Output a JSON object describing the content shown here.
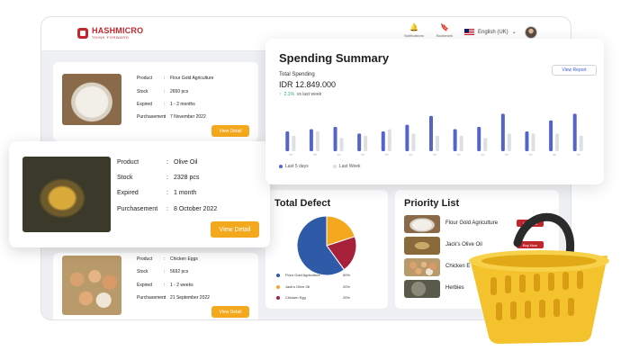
{
  "brand": {
    "name": "HASHMICRO",
    "tagline": "THINK FORWARD"
  },
  "topbar": {
    "notifications_label": "Notifications",
    "bookmark_label": "Bookmark",
    "language": "English (UK)"
  },
  "products": [
    {
      "product_label": "Product",
      "product": "Flour Gold Agriculture",
      "stock_label": "Stock",
      "stock": "2650 pcs",
      "expired_label": "Expired",
      "expired": "1 - 2 months",
      "purchase_label": "Purchasement",
      "purchase": "7 November 2022",
      "button": "View Detail",
      "image": "flour"
    },
    {
      "product_label": "Product",
      "product": "Olive Oil",
      "stock_label": "Stock",
      "stock": "2328 pcs",
      "expired_label": "Expired",
      "expired": "1 month",
      "purchase_label": "Purchasement",
      "purchase": "8 October 2022",
      "button": "View Detail",
      "image": "olive-oil"
    },
    {
      "product_label": "Product",
      "product": "Chicken Eggs",
      "stock_label": "Stock",
      "stock": "5692 pcs",
      "expired_label": "Expired",
      "expired": "1 - 2 weeks",
      "purchase_label": "Purchasement",
      "purchase": "21 September 2022",
      "button": "View Detail",
      "image": "eggs"
    }
  ],
  "spending": {
    "title": "Spending Summary",
    "total_label": "Total Spending",
    "total_value": "IDR 12.849.000",
    "delta_pct": "2.1%",
    "delta_text": "vs last week",
    "view_report": "View Report",
    "legend_current": "Last 5 days",
    "legend_previous": "Last Week"
  },
  "defect": {
    "title": "Total Defect",
    "rows": [
      {
        "name": "Flour Gold Agriculture",
        "pct": "60%",
        "color": "#2f5aa8"
      },
      {
        "name": "Jack's Olive Oil",
        "pct": "20%",
        "color": "#f4a81d"
      },
      {
        "name": "Chicken Egg",
        "pct": "20%",
        "color": "#a8213a"
      }
    ]
  },
  "priority": {
    "title": "Priority List",
    "items": [
      {
        "name": "Flour Gold Agriculture",
        "button": "Buy Now"
      },
      {
        "name": "Jack's Olive Oil",
        "button": "Buy Now"
      },
      {
        "name": "Chicken E",
        "button": ""
      },
      {
        "name": "Herbies",
        "button": ""
      }
    ]
  },
  "colors": {
    "brand_red": "#c0272d",
    "accent_orange": "#f4a81d",
    "bar_blue": "#5464c7",
    "bar_gray": "#dcdfe4"
  },
  "chart_data": {
    "type": "bar",
    "title": "Spending Summary",
    "categories": [
      "",
      "",
      "",
      "",
      "",
      "",
      "",
      "",
      "",
      "",
      "",
      "",
      ""
    ],
    "series": [
      {
        "name": "Last 5 days",
        "values": [
          0.45,
          0.5,
          0.55,
          0.4,
          0.45,
          0.6,
          0.8,
          0.5,
          0.55,
          0.85,
          0.45,
          0.7,
          0.85
        ]
      },
      {
        "name": "Last Week",
        "values": [
          0.35,
          0.45,
          0.3,
          0.35,
          0.5,
          0.4,
          0.35,
          0.35,
          0.3,
          0.4,
          0.4,
          0.4,
          0.35
        ]
      }
    ],
    "ylim": [
      0,
      1
    ],
    "grid": false,
    "legend": "bottom-left"
  }
}
